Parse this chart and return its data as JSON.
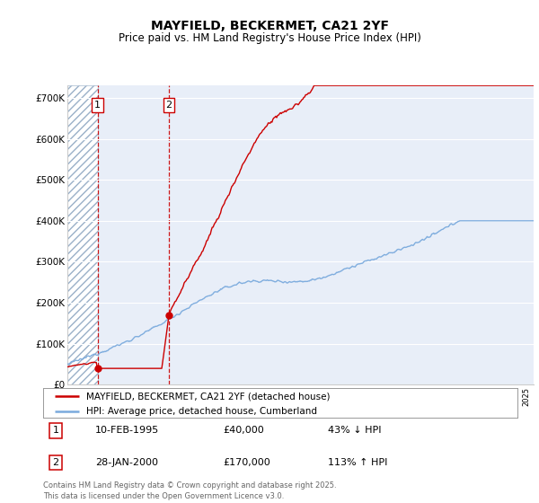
{
  "title1": "MAYFIELD, BECKERMET, CA21 2YF",
  "title2": "Price paid vs. HM Land Registry's House Price Index (HPI)",
  "ylim": [
    0,
    730000
  ],
  "yticks": [
    0,
    100000,
    200000,
    300000,
    400000,
    500000,
    600000,
    700000
  ],
  "ytick_labels": [
    "£0",
    "£100K",
    "£200K",
    "£300K",
    "£400K",
    "£500K",
    "£600K",
    "£700K"
  ],
  "xlim_start": 1993.0,
  "xlim_end": 2025.5,
  "sale1_x": 1995.11,
  "sale1_y": 40000,
  "sale2_x": 2000.08,
  "sale2_y": 170000,
  "legend_line1": "MAYFIELD, BECKERMET, CA21 2YF (detached house)",
  "legend_line2": "HPI: Average price, detached house, Cumberland",
  "footer": "Contains HM Land Registry data © Crown copyright and database right 2025.\nThis data is licensed under the Open Government Licence v3.0.",
  "sale_line_color": "#cc0000",
  "hpi_line_color": "#7aaadd",
  "background_color": "#ffffff",
  "plot_bg_color": "#e8eef8"
}
